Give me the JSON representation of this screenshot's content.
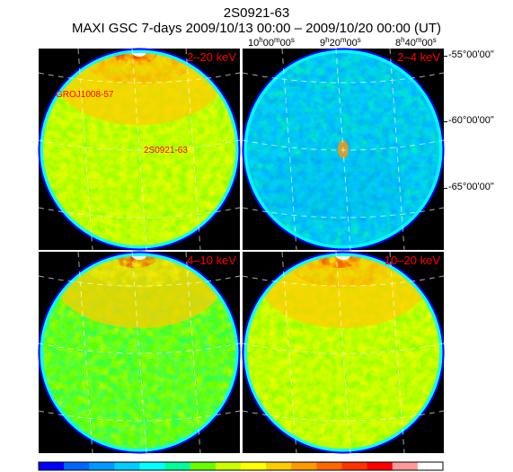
{
  "header": {
    "source": "2S0921-63",
    "subtitle": "MAXI GSC 7-days 2009/10/13 00:00 – 2009/10/20 00:00 (UT)"
  },
  "axes": {
    "ra_ticks": [
      {
        "h": "10",
        "m": "00",
        "s": "00"
      },
      {
        "h": "9",
        "m": "20",
        "s": "00"
      },
      {
        "h": "8",
        "m": "40",
        "s": "00"
      }
    ],
    "dec_ticks": [
      "-55°00ʹ00ʺ",
      "-60°00ʹ00ʺ",
      "-65°00ʹ00ʺ"
    ]
  },
  "panels": [
    {
      "band": "2–20 keV",
      "level": "high",
      "hotspot": "top"
    },
    {
      "band": "2–4 keV",
      "level": "low",
      "hotspot": "center"
    },
    {
      "band": "4–10 keV",
      "level": "mid",
      "hotspot": "top"
    },
    {
      "band": "10–20 keV",
      "level": "high",
      "hotspot": "top"
    }
  ],
  "sources": [
    "GROJ1008-57",
    "2S0921-63"
  ],
  "colors": {
    "background": "#000000",
    "label": "#ff0000",
    "colorbar": [
      "#0000ff",
      "#0066ff",
      "#0099ff",
      "#00ccff",
      "#00ffff",
      "#00ff99",
      "#66ff00",
      "#ccff00",
      "#ffff00",
      "#ffcc00",
      "#ff9900",
      "#ff6600",
      "#ff3300",
      "#ff0000",
      "#ff9999",
      "#ffffff"
    ]
  }
}
